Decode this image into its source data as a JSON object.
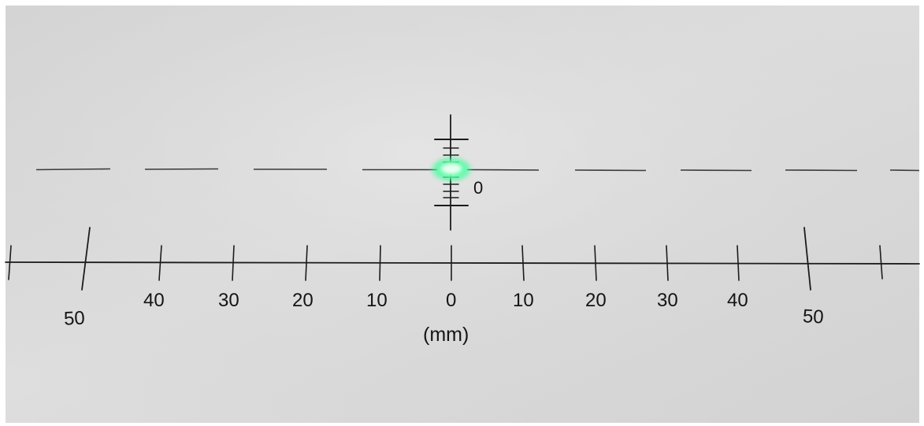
{
  "scale": {
    "left_labels": [
      "50",
      "40",
      "30",
      "20",
      "10"
    ],
    "center_label": "0",
    "right_labels": [
      "10",
      "20",
      "30",
      "40",
      "50"
    ],
    "unit": "(mm)"
  },
  "reticle": {
    "label": "0"
  },
  "laser_spot": {
    "color": "#3dff9a",
    "position_mm": 0
  },
  "colors": {
    "paper": "#d9d9d9",
    "ink": "#1c1c1c"
  }
}
